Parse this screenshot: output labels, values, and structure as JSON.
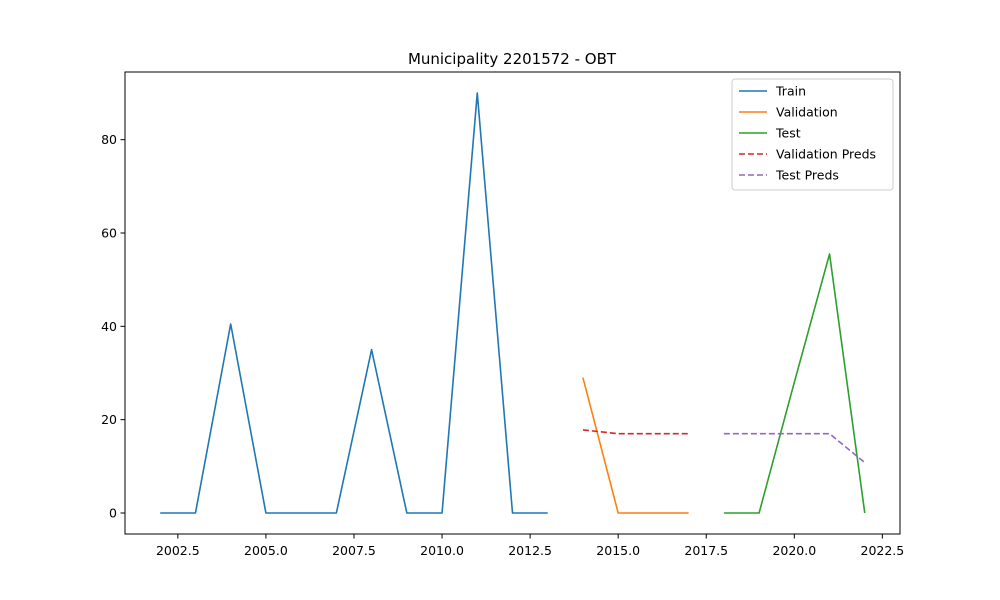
{
  "chart_data": {
    "type": "line",
    "title": "Municipality 2201572 - OBT",
    "xlabel": "",
    "ylabel": "",
    "xlim": [
      2001.0,
      2023.0
    ],
    "ylim": [
      -4.5,
      94.5
    ],
    "xticks": [
      2002.5,
      2005.0,
      2007.5,
      2010.0,
      2012.5,
      2015.0,
      2017.5,
      2020.0,
      2022.5
    ],
    "xtick_labels": [
      "2002.5",
      "2005.0",
      "2007.5",
      "2010.0",
      "2012.5",
      "2015.0",
      "2017.5",
      "2020.0",
      "2022.5"
    ],
    "yticks": [
      0,
      20,
      40,
      60,
      80
    ],
    "ytick_labels": [
      "0",
      "20",
      "40",
      "60",
      "80"
    ],
    "grid": false,
    "legend_position": "top-right",
    "series": [
      {
        "name": "Train",
        "color": "#1f77b4",
        "dash": "solid",
        "x": [
          2002,
          2003,
          2004,
          2005,
          2006,
          2007,
          2008,
          2009,
          2010,
          2011,
          2012,
          2013
        ],
        "y": [
          0,
          0,
          40.5,
          0,
          0,
          0,
          35,
          0,
          0,
          90,
          0,
          0
        ]
      },
      {
        "name": "Validation",
        "color": "#ff7f0e",
        "dash": "solid",
        "x": [
          2014,
          2015,
          2016,
          2017
        ],
        "y": [
          29,
          0,
          0,
          0
        ]
      },
      {
        "name": "Test",
        "color": "#2ca02c",
        "dash": "solid",
        "x": [
          2018,
          2019,
          2020,
          2021,
          2022
        ],
        "y": [
          0,
          0,
          28,
          55.5,
          0
        ]
      },
      {
        "name": "Validation Preds",
        "color": "#d62728",
        "dash": "dashed",
        "x": [
          2014,
          2015,
          2016,
          2017
        ],
        "y": [
          17.8,
          17,
          17,
          17
        ]
      },
      {
        "name": "Test Preds",
        "color": "#9467bd",
        "dash": "dashed",
        "x": [
          2018,
          2019,
          2020,
          2021,
          2022
        ],
        "y": [
          17,
          17,
          17,
          17,
          10.8
        ]
      }
    ]
  }
}
